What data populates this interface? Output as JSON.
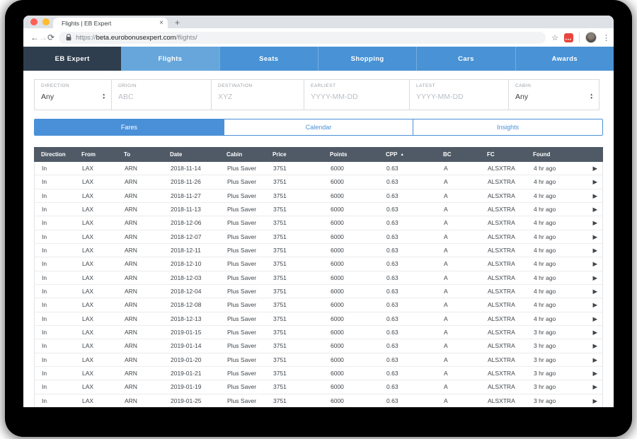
{
  "browser": {
    "tab_title": "Flights | EB Expert",
    "url_scheme": "https://",
    "url_host": "beta.eurobonusexpert.com",
    "url_path": "/flights/"
  },
  "icons": {
    "close": "×",
    "new_tab": "+",
    "back": "←",
    "forward": "→",
    "reload": "⟳",
    "star": "☆",
    "kebab": "⋮",
    "ext_dots": "•••",
    "spinner_up": "▲",
    "spinner_down": "▼",
    "sort_asc": "▲",
    "row_chevron": "▶"
  },
  "nav": {
    "brand": "EB Expert",
    "items": [
      {
        "label": "Flights",
        "active": true
      },
      {
        "label": "Seats",
        "active": false
      },
      {
        "label": "Shopping",
        "active": false
      },
      {
        "label": "Cars",
        "active": false
      },
      {
        "label": "Awards",
        "active": false
      }
    ]
  },
  "filters": [
    {
      "label": "Direction",
      "value": "Any",
      "type": "select"
    },
    {
      "label": "Origin",
      "placeholder": "ABC",
      "type": "text"
    },
    {
      "label": "Destination",
      "placeholder": "XYZ",
      "type": "text"
    },
    {
      "label": "Earliest",
      "placeholder": "YYYY-MM-DD",
      "type": "text"
    },
    {
      "label": "Latest",
      "placeholder": "YYYY-MM-DD",
      "type": "text"
    },
    {
      "label": "Cabin",
      "value": "Any",
      "type": "select"
    }
  ],
  "view_tabs": [
    {
      "label": "Fares",
      "active": true
    },
    {
      "label": "Calendar",
      "active": false
    },
    {
      "label": "Insights",
      "active": false
    }
  ],
  "table": {
    "columns": [
      "Direction",
      "From",
      "To",
      "Date",
      "Cabin",
      "Price",
      "Points",
      "CPP",
      "BC",
      "FC",
      "Found"
    ],
    "sort_column": "CPP",
    "sort_direction": "asc",
    "rows": [
      {
        "direction": "In",
        "from": "LAX",
        "to": "ARN",
        "date": "2018-11-14",
        "cabin": "Plus Saver",
        "price": "3751",
        "points": "6000",
        "cpp": "0.63",
        "bc": "A",
        "fc": "ALSXTRA",
        "found": "4 hr ago"
      },
      {
        "direction": "In",
        "from": "LAX",
        "to": "ARN",
        "date": "2018-11-26",
        "cabin": "Plus Saver",
        "price": "3751",
        "points": "6000",
        "cpp": "0.63",
        "bc": "A",
        "fc": "ALSXTRA",
        "found": "4 hr ago"
      },
      {
        "direction": "In",
        "from": "LAX",
        "to": "ARN",
        "date": "2018-11-27",
        "cabin": "Plus Saver",
        "price": "3751",
        "points": "6000",
        "cpp": "0.63",
        "bc": "A",
        "fc": "ALSXTRA",
        "found": "4 hr ago"
      },
      {
        "direction": "In",
        "from": "LAX",
        "to": "ARN",
        "date": "2018-11-13",
        "cabin": "Plus Saver",
        "price": "3751",
        "points": "6000",
        "cpp": "0.63",
        "bc": "A",
        "fc": "ALSXTRA",
        "found": "4 hr ago"
      },
      {
        "direction": "In",
        "from": "LAX",
        "to": "ARN",
        "date": "2018-12-06",
        "cabin": "Plus Saver",
        "price": "3751",
        "points": "6000",
        "cpp": "0.63",
        "bc": "A",
        "fc": "ALSXTRA",
        "found": "4 hr ago"
      },
      {
        "direction": "In",
        "from": "LAX",
        "to": "ARN",
        "date": "2018-12-07",
        "cabin": "Plus Saver",
        "price": "3751",
        "points": "6000",
        "cpp": "0.63",
        "bc": "A",
        "fc": "ALSXTRA",
        "found": "4 hr ago"
      },
      {
        "direction": "In",
        "from": "LAX",
        "to": "ARN",
        "date": "2018-12-11",
        "cabin": "Plus Saver",
        "price": "3751",
        "points": "6000",
        "cpp": "0.63",
        "bc": "A",
        "fc": "ALSXTRA",
        "found": "4 hr ago"
      },
      {
        "direction": "In",
        "from": "LAX",
        "to": "ARN",
        "date": "2018-12-10",
        "cabin": "Plus Saver",
        "price": "3751",
        "points": "6000",
        "cpp": "0.63",
        "bc": "A",
        "fc": "ALSXTRA",
        "found": "4 hr ago"
      },
      {
        "direction": "In",
        "from": "LAX",
        "to": "ARN",
        "date": "2018-12-03",
        "cabin": "Plus Saver",
        "price": "3751",
        "points": "6000",
        "cpp": "0.63",
        "bc": "A",
        "fc": "ALSXTRA",
        "found": "4 hr ago"
      },
      {
        "direction": "In",
        "from": "LAX",
        "to": "ARN",
        "date": "2018-12-04",
        "cabin": "Plus Saver",
        "price": "3751",
        "points": "6000",
        "cpp": "0.63",
        "bc": "A",
        "fc": "ALSXTRA",
        "found": "4 hr ago"
      },
      {
        "direction": "In",
        "from": "LAX",
        "to": "ARN",
        "date": "2018-12-08",
        "cabin": "Plus Saver",
        "price": "3751",
        "points": "6000",
        "cpp": "0.63",
        "bc": "A",
        "fc": "ALSXTRA",
        "found": "4 hr ago"
      },
      {
        "direction": "In",
        "from": "LAX",
        "to": "ARN",
        "date": "2018-12-13",
        "cabin": "Plus Saver",
        "price": "3751",
        "points": "6000",
        "cpp": "0.63",
        "bc": "A",
        "fc": "ALSXTRA",
        "found": "4 hr ago"
      },
      {
        "direction": "In",
        "from": "LAX",
        "to": "ARN",
        "date": "2019-01-15",
        "cabin": "Plus Saver",
        "price": "3751",
        "points": "6000",
        "cpp": "0.63",
        "bc": "A",
        "fc": "ALSXTRA",
        "found": "3 hr ago"
      },
      {
        "direction": "In",
        "from": "LAX",
        "to": "ARN",
        "date": "2019-01-14",
        "cabin": "Plus Saver",
        "price": "3751",
        "points": "6000",
        "cpp": "0.63",
        "bc": "A",
        "fc": "ALSXTRA",
        "found": "3 hr ago"
      },
      {
        "direction": "In",
        "from": "LAX",
        "to": "ARN",
        "date": "2019-01-20",
        "cabin": "Plus Saver",
        "price": "3751",
        "points": "6000",
        "cpp": "0.63",
        "bc": "A",
        "fc": "ALSXTRA",
        "found": "3 hr ago"
      },
      {
        "direction": "In",
        "from": "LAX",
        "to": "ARN",
        "date": "2019-01-21",
        "cabin": "Plus Saver",
        "price": "3751",
        "points": "6000",
        "cpp": "0.63",
        "bc": "A",
        "fc": "ALSXTRA",
        "found": "3 hr ago"
      },
      {
        "direction": "In",
        "from": "LAX",
        "to": "ARN",
        "date": "2019-01-19",
        "cabin": "Plus Saver",
        "price": "3751",
        "points": "6000",
        "cpp": "0.63",
        "bc": "A",
        "fc": "ALSXTRA",
        "found": "3 hr ago"
      },
      {
        "direction": "In",
        "from": "LAX",
        "to": "ARN",
        "date": "2019-01-25",
        "cabin": "Plus Saver",
        "price": "3751",
        "points": "6000",
        "cpp": "0.63",
        "bc": "A",
        "fc": "ALSXTRA",
        "found": "3 hr ago"
      }
    ]
  },
  "colors": {
    "accent": "#4a90d8",
    "nav-dark": "#2f3e4e",
    "nav-blue": "#4892d5",
    "nav-active": "#66a6db",
    "table-header": "#4f5a66",
    "link": "#5fa8e0"
  }
}
